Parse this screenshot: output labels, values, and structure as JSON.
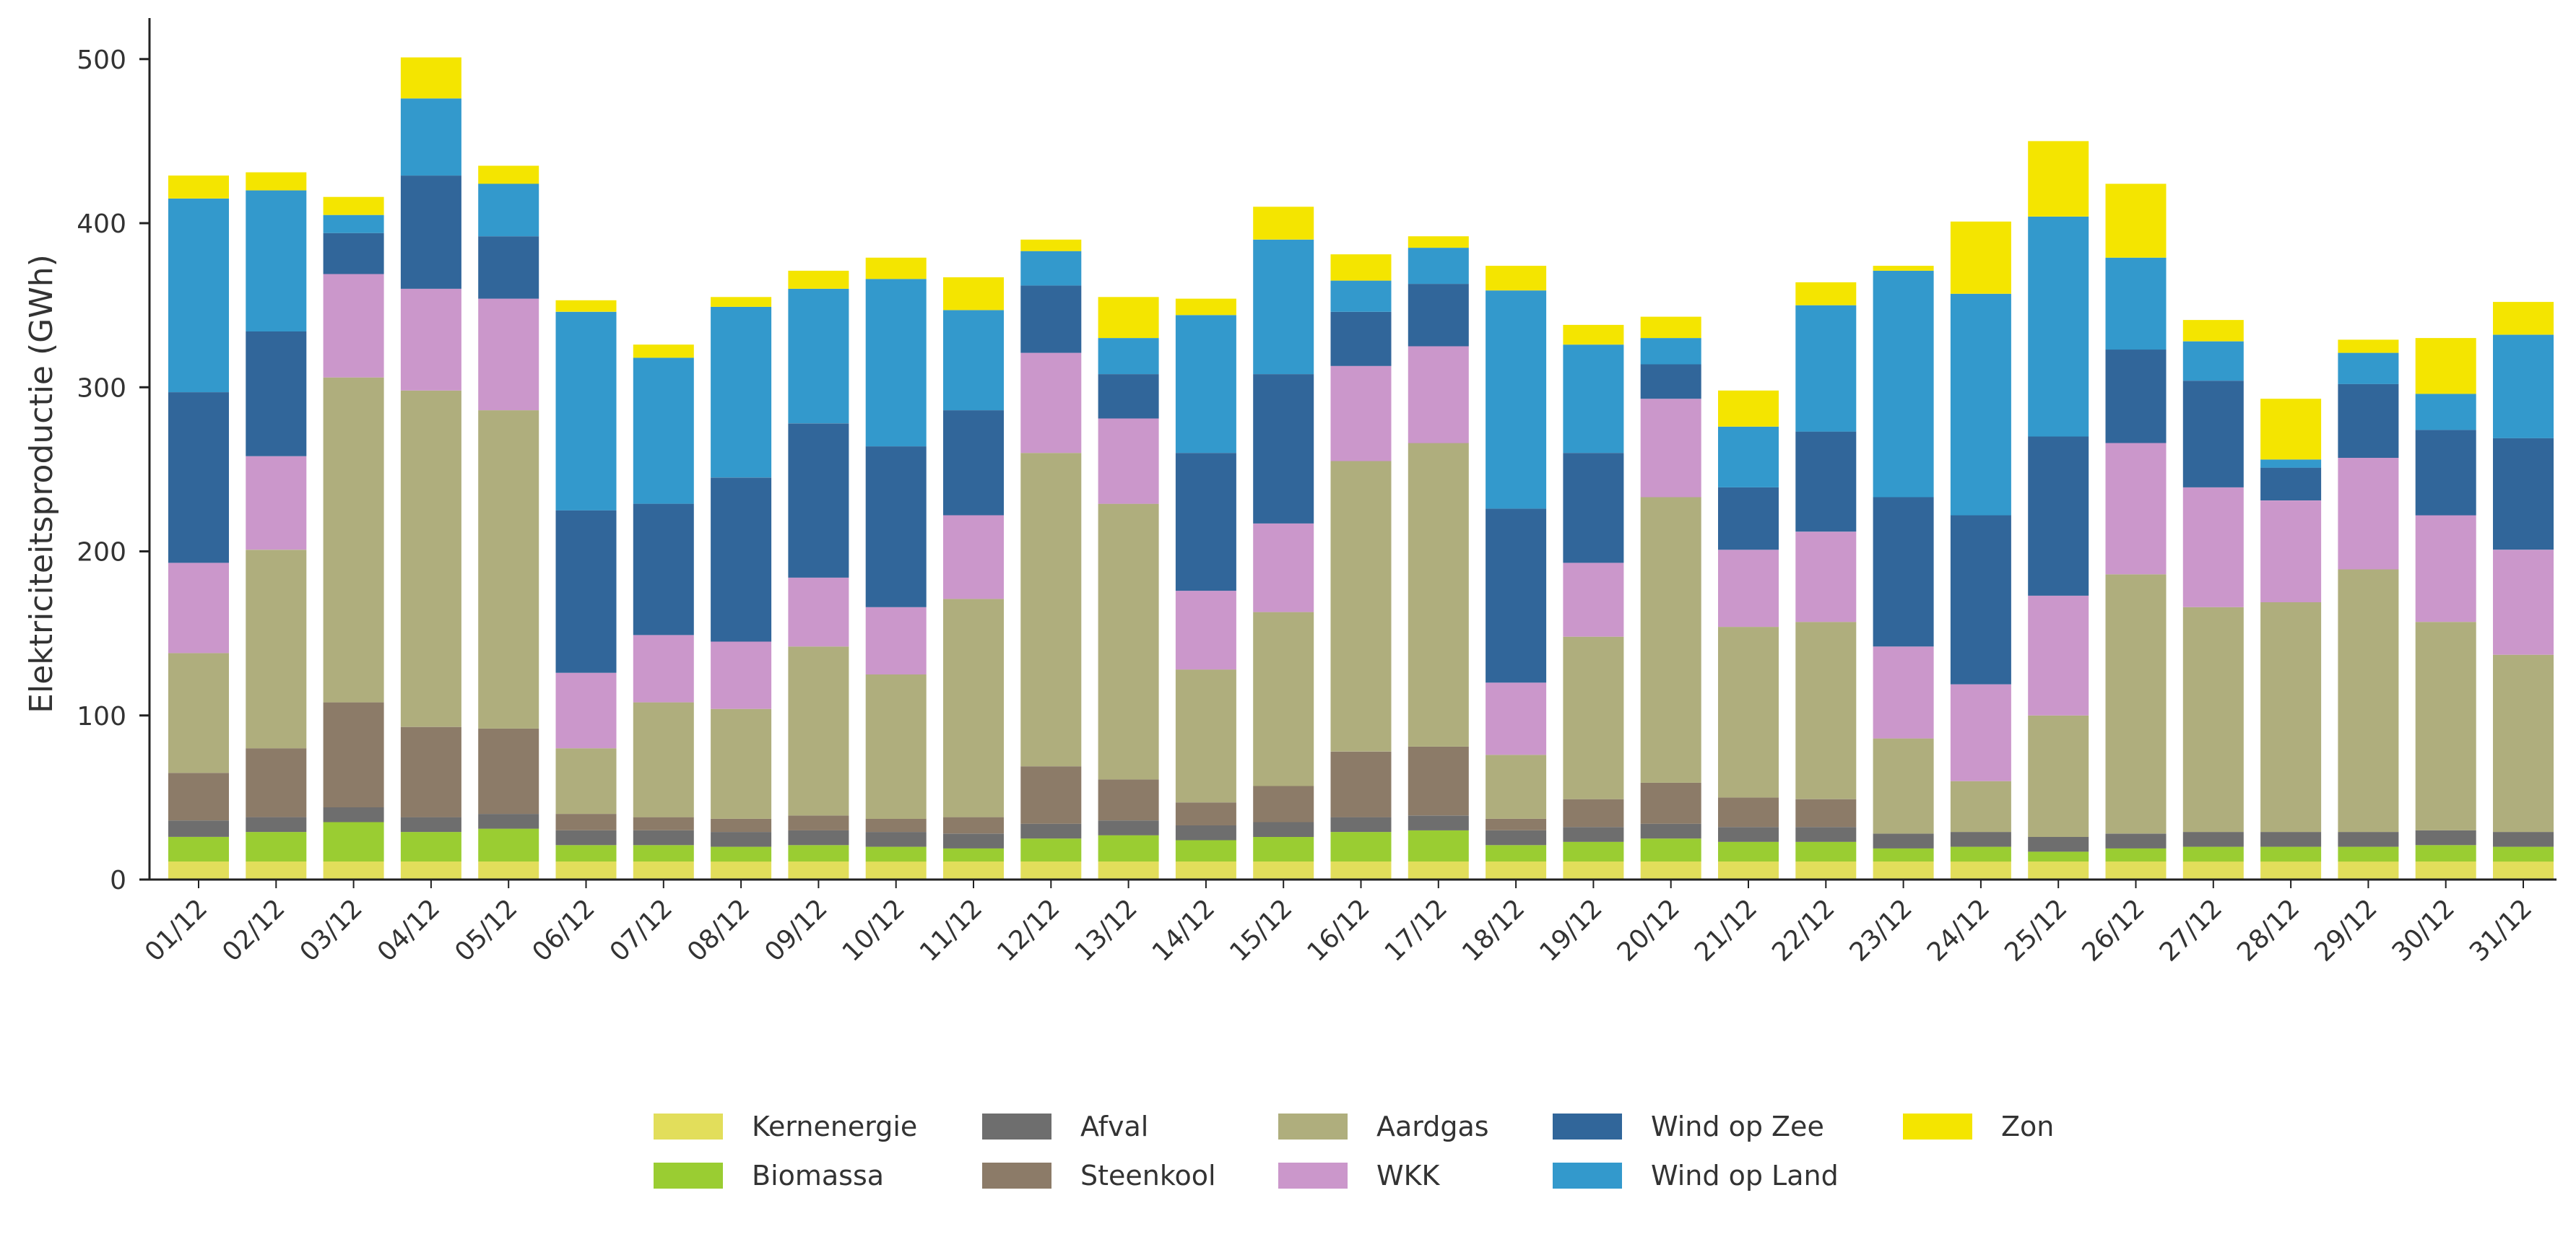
{
  "chart_data": {
    "type": "stacked-bar",
    "title": "",
    "xlabel": "",
    "ylabel": "Elektriciteitsproductie (GWh)",
    "ylim": [
      0,
      525
    ],
    "yticks": [
      0,
      100,
      200,
      300,
      400,
      500
    ],
    "categories": [
      "01/12",
      "02/12",
      "03/12",
      "04/12",
      "05/12",
      "06/12",
      "07/12",
      "08/12",
      "09/12",
      "10/12",
      "11/12",
      "12/12",
      "13/12",
      "14/12",
      "15/12",
      "16/12",
      "17/12",
      "18/12",
      "19/12",
      "20/12",
      "21/12",
      "22/12",
      "23/12",
      "24/12",
      "25/12",
      "26/12",
      "27/12",
      "28/12",
      "29/12",
      "30/12",
      "31/12"
    ],
    "series": [
      {
        "name": "Kernenergie",
        "color": "#E2DE5B",
        "values": [
          11,
          11,
          11,
          11,
          11,
          11,
          11,
          11,
          11,
          11,
          11,
          11,
          11,
          11,
          11,
          11,
          11,
          11,
          11,
          11,
          11,
          11,
          11,
          11,
          11,
          11,
          11,
          11,
          11,
          11,
          11
        ]
      },
      {
        "name": "Biomassa",
        "color": "#9ACD32",
        "values": [
          15,
          18,
          24,
          18,
          20,
          10,
          10,
          9,
          10,
          9,
          8,
          14,
          16,
          13,
          15,
          18,
          19,
          10,
          12,
          14,
          12,
          12,
          8,
          9,
          6,
          8,
          9,
          9,
          9,
          10,
          9
        ]
      },
      {
        "name": "Afval",
        "color": "#6E6E6E",
        "values": [
          10,
          9,
          9,
          9,
          9,
          9,
          9,
          9,
          9,
          9,
          9,
          9,
          9,
          9,
          9,
          9,
          9,
          9,
          9,
          9,
          9,
          9,
          9,
          9,
          9,
          9,
          9,
          9,
          9,
          9,
          9
        ]
      },
      {
        "name": "Steenkool",
        "color": "#8C7B68",
        "values": [
          29,
          42,
          64,
          55,
          52,
          10,
          8,
          8,
          9,
          8,
          10,
          35,
          25,
          14,
          22,
          40,
          42,
          7,
          17,
          25,
          18,
          17,
          0,
          0,
          0,
          0,
          0,
          0,
          0,
          0,
          0
        ]
      },
      {
        "name": "Aardgas",
        "color": "#AFAE7D",
        "values": [
          73,
          121,
          198,
          205,
          194,
          40,
          70,
          67,
          103,
          88,
          133,
          191,
          168,
          81,
          106,
          177,
          185,
          39,
          99,
          174,
          104,
          108,
          58,
          31,
          74,
          158,
          137,
          140,
          160,
          127,
          108
        ]
      },
      {
        "name": "WKK",
        "color": "#CB97CB",
        "values": [
          55,
          57,
          63,
          62,
          68,
          46,
          41,
          41,
          42,
          41,
          51,
          61,
          52,
          48,
          54,
          58,
          59,
          44,
          45,
          60,
          47,
          55,
          56,
          59,
          73,
          80,
          73,
          62,
          68,
          65,
          64
        ]
      },
      {
        "name": "Wind op Zee",
        "color": "#31669A",
        "values": [
          104,
          76,
          25,
          69,
          38,
          99,
          80,
          100,
          94,
          98,
          64,
          41,
          27,
          84,
          91,
          33,
          38,
          106,
          67,
          21,
          38,
          61,
          91,
          103,
          97,
          57,
          65,
          20,
          45,
          52,
          68
        ]
      },
      {
        "name": "Wind op Land",
        "color": "#3399CC",
        "values": [
          118,
          86,
          11,
          47,
          32,
          121,
          89,
          104,
          82,
          102,
          61,
          21,
          22,
          84,
          82,
          19,
          22,
          133,
          66,
          16,
          37,
          77,
          138,
          135,
          134,
          56,
          24,
          5,
          19,
          22,
          63
        ]
      },
      {
        "name": "Zon",
        "color": "#F4E500",
        "values": [
          14,
          11,
          11,
          25,
          11,
          7,
          8,
          6,
          11,
          13,
          20,
          7,
          25,
          10,
          20,
          16,
          7,
          15,
          12,
          13,
          22,
          14,
          3,
          44,
          46,
          45,
          13,
          37,
          8,
          34,
          20
        ]
      }
    ]
  },
  "legend": {
    "items": [
      {
        "label": "Kernenergie",
        "color": "#E2DE5B"
      },
      {
        "label": "Biomassa",
        "color": "#9ACD32"
      },
      {
        "label": "Afval",
        "color": "#6E6E6E"
      },
      {
        "label": "Steenkool",
        "color": "#8C7B68"
      },
      {
        "label": "Aardgas",
        "color": "#AFAE7D"
      },
      {
        "label": "WKK",
        "color": "#CB97CB"
      },
      {
        "label": "Wind op Zee",
        "color": "#31669A"
      },
      {
        "label": "Wind op Land",
        "color": "#3399CC"
      },
      {
        "label": "Zon",
        "color": "#F4E500"
      }
    ]
  }
}
